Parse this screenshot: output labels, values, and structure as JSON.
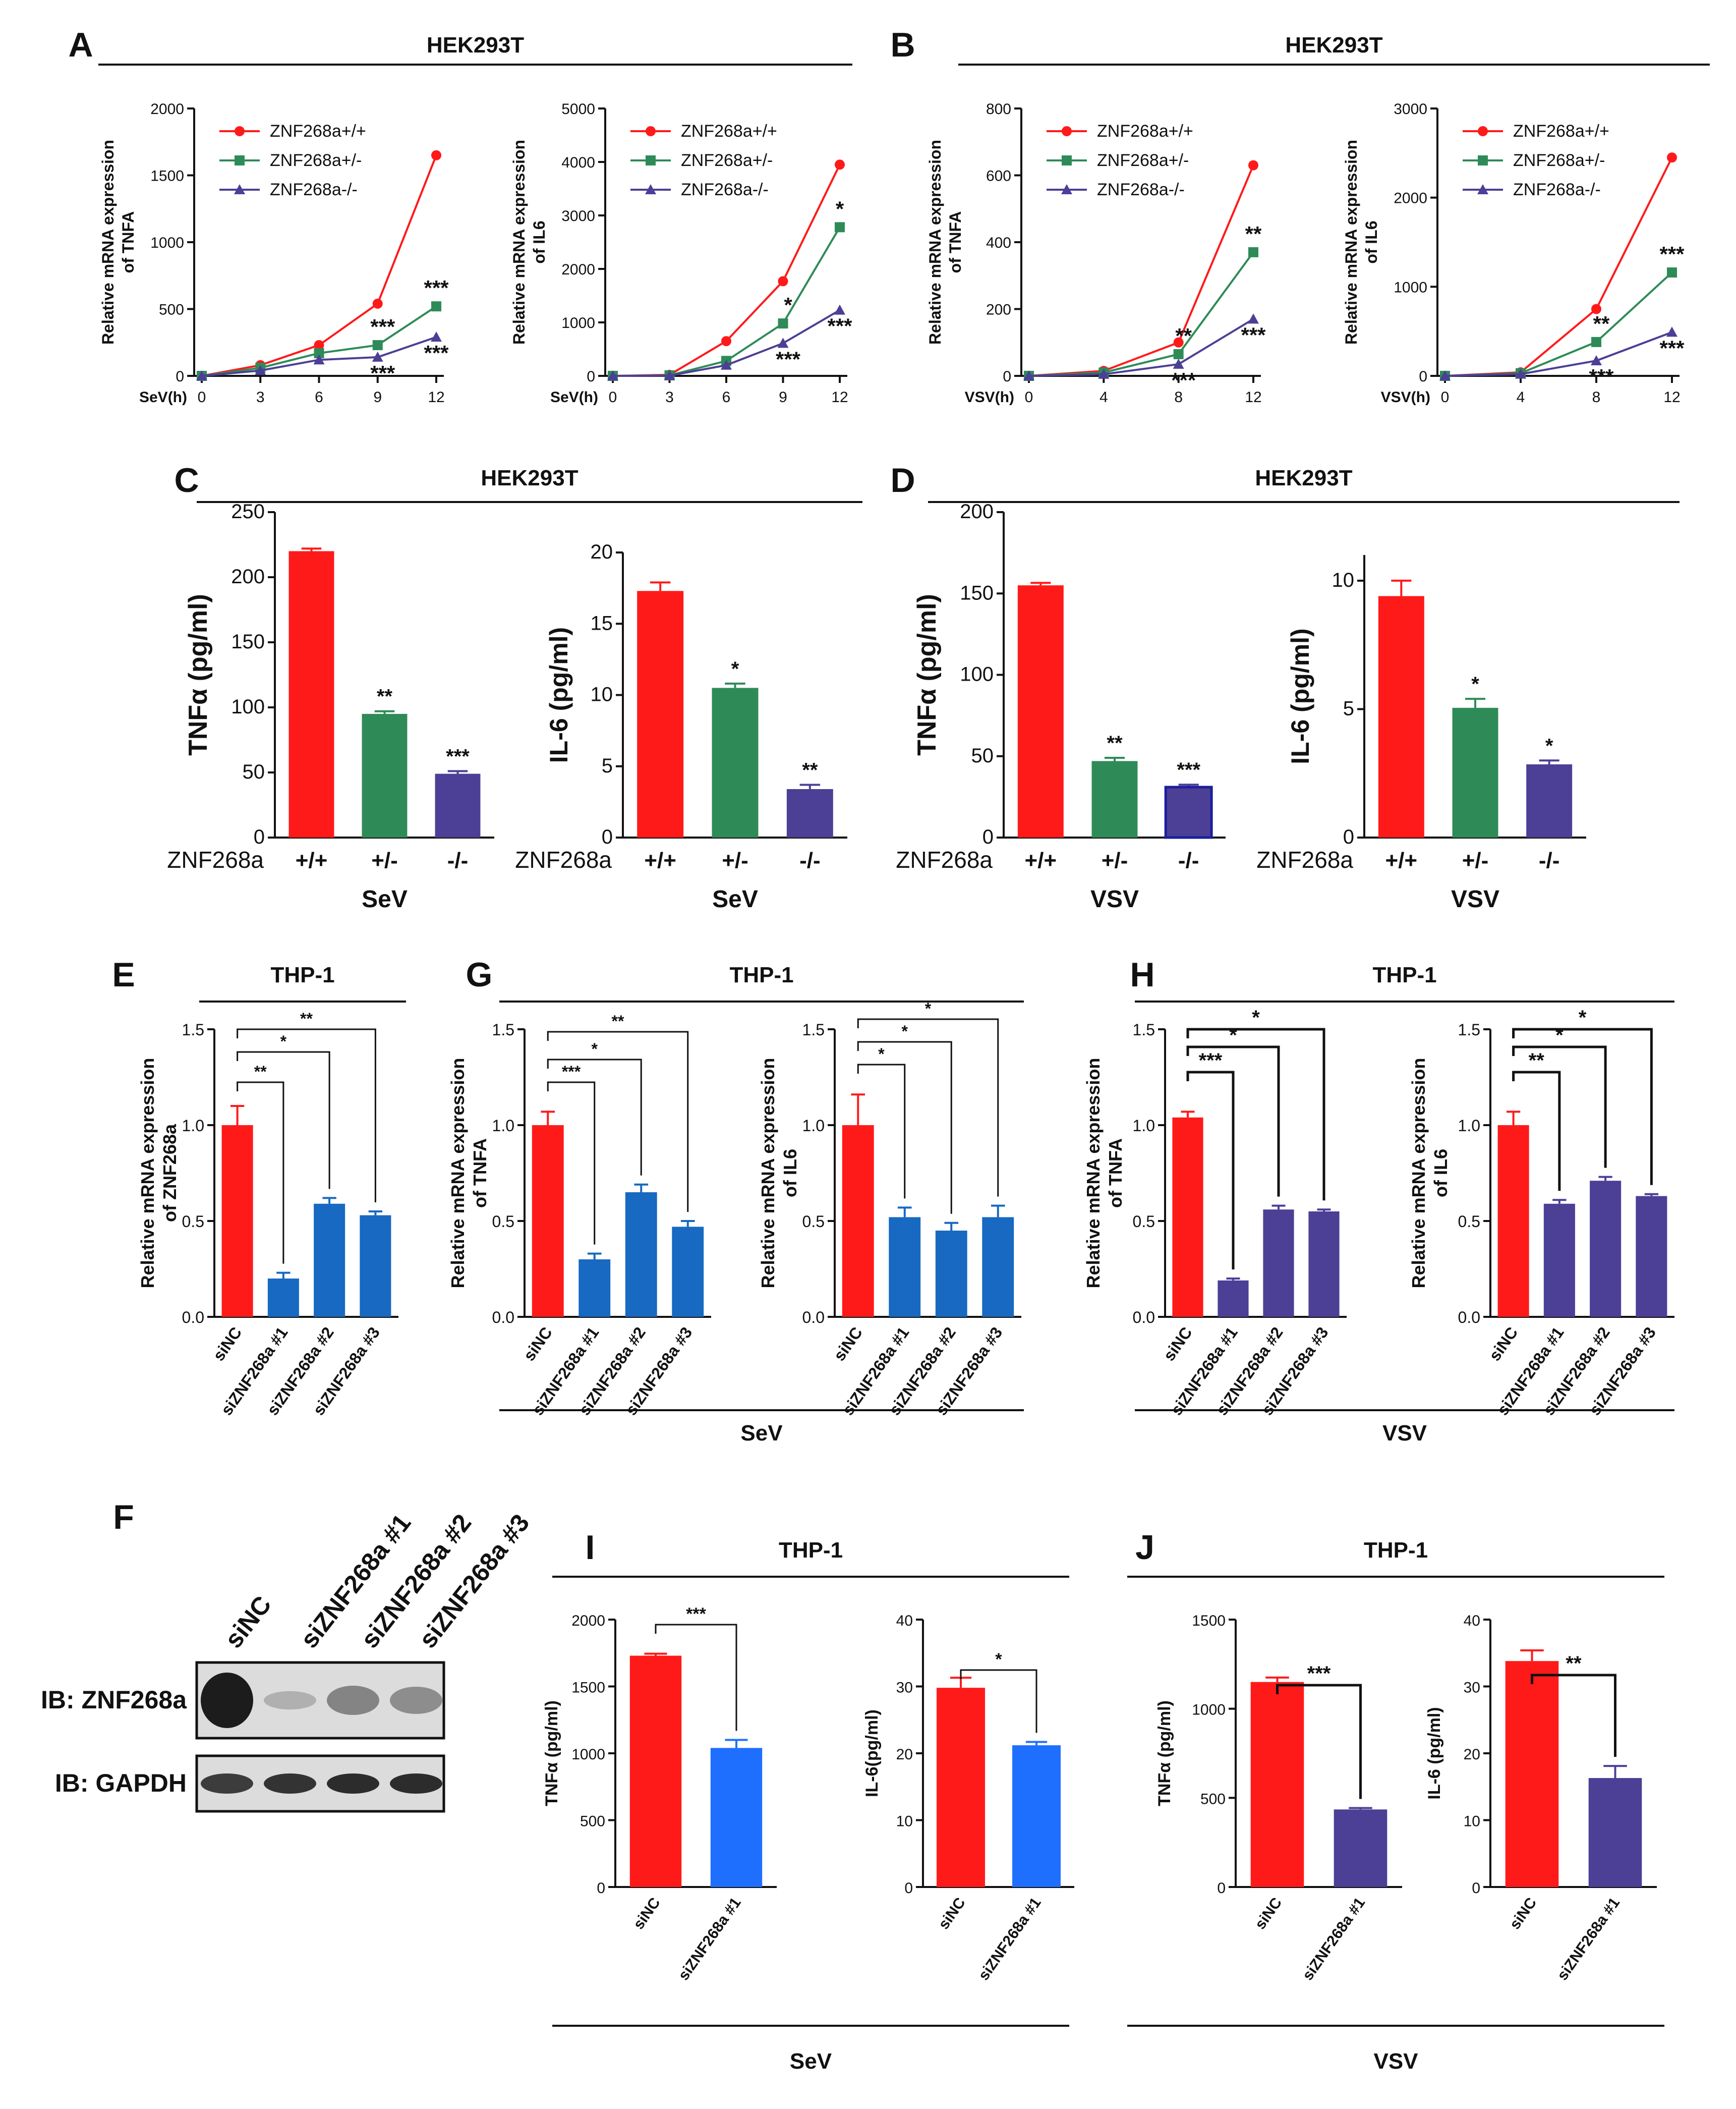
{
  "panel_letters": [
    "A",
    "B",
    "C",
    "D",
    "E",
    "F",
    "G",
    "H",
    "I",
    "J"
  ],
  "colors": {
    "red": "#ff1a1a",
    "green": "#2e8b57",
    "purple": "#4b3f96",
    "blue": "#1769c2",
    "bright_blue": "#1f6fff",
    "black": "#111111"
  },
  "section_titles": {
    "A": "HEK293T",
    "B": "HEK293T",
    "C": "HEK293T",
    "D": "HEK293T",
    "E": "THP-1",
    "G": "THP-1",
    "H": "THP-1",
    "I": "THP-1",
    "J": "THP-1"
  },
  "group_labels": {
    "G": "SeV",
    "H": "VSV",
    "I": "SeV",
    "J": "VSV"
  },
  "blot": {
    "lanes": [
      "siNC",
      "siZNF268a #1",
      "siZNF268a #2",
      "siZNF268a #3"
    ],
    "rows": [
      "IB: ZNF268a",
      "IB: GAPDH"
    ],
    "intensities": {
      "ZNF268a": [
        1.0,
        0.08,
        0.35,
        0.3
      ],
      "GAPDH": [
        0.8,
        0.85,
        0.9,
        0.9
      ]
    }
  },
  "chart_data": [
    {
      "id": "A1",
      "type": "line",
      "xlabel": "SeV(h)",
      "ylabel": [
        "Relative mRNA expression",
        "of TNFA"
      ],
      "x": [
        0,
        3,
        6,
        9,
        12
      ],
      "ylim": [
        0,
        2000
      ],
      "yticks": [
        0,
        500,
        1000,
        1500,
        2000
      ],
      "legend": [
        "ZNF268a+/+",
        "ZNF268a+/-",
        "ZNF268a-/-"
      ],
      "series": [
        {
          "name": "ZNF268a+/+",
          "values": [
            0,
            80,
            230,
            540,
            1650
          ]
        },
        {
          "name": "ZNF268a+/-",
          "values": [
            0,
            60,
            170,
            230,
            520
          ]
        },
        {
          "name": "ZNF268a-/-",
          "values": [
            0,
            40,
            120,
            140,
            290
          ]
        }
      ],
      "annotations": [
        {
          "x": 9,
          "y": 230,
          "text": "***"
        },
        {
          "x": 12,
          "y": 520,
          "text": "***"
        },
        {
          "x": 9,
          "y": 140,
          "text": "***"
        },
        {
          "x": 12,
          "y": 290,
          "text": "***"
        }
      ]
    },
    {
      "id": "A2",
      "type": "line",
      "xlabel": "SeV(h)",
      "ylabel": [
        "Relative mRNA expression",
        "of IL6"
      ],
      "x": [
        0,
        3,
        6,
        9,
        12
      ],
      "ylim": [
        0,
        5000
      ],
      "yticks": [
        0,
        1000,
        2000,
        3000,
        4000,
        5000
      ],
      "legend": [
        "ZNF268a+/+",
        "ZNF268a+/-",
        "ZNF268a-/-"
      ],
      "series": [
        {
          "name": "ZNF268a+/+",
          "values": [
            0,
            20,
            650,
            1770,
            3950
          ]
        },
        {
          "name": "ZNF268a+/-",
          "values": [
            0,
            10,
            280,
            980,
            2780
          ]
        },
        {
          "name": "ZNF268a-/-",
          "values": [
            0,
            5,
            200,
            610,
            1230
          ]
        }
      ],
      "annotations": [
        {
          "x": 9,
          "y": 980,
          "text": "*"
        },
        {
          "x": 12,
          "y": 2780,
          "text": "*"
        },
        {
          "x": 9,
          "y": 610,
          "text": "***"
        },
        {
          "x": 12,
          "y": 1230,
          "text": "***"
        }
      ]
    },
    {
      "id": "B1",
      "type": "line",
      "xlabel": "VSV(h)",
      "ylabel": [
        "Relative mRNA expression",
        "of TNFA"
      ],
      "x": [
        0,
        4,
        8,
        12
      ],
      "ylim": [
        0,
        800
      ],
      "yticks": [
        0,
        200,
        400,
        600,
        800
      ],
      "legend": [
        "ZNF268a+/+",
        "ZNF268a+/-",
        "ZNF268a-/-"
      ],
      "series": [
        {
          "name": "ZNF268a+/+",
          "values": [
            0,
            15,
            100,
            630
          ]
        },
        {
          "name": "ZNF268a+/-",
          "values": [
            0,
            10,
            65,
            370
          ]
        },
        {
          "name": "ZNF268a-/-",
          "values": [
            0,
            5,
            35,
            170
          ]
        }
      ],
      "annotations": [
        {
          "x": 8,
          "y": 65,
          "text": "**"
        },
        {
          "x": 12,
          "y": 370,
          "text": "**"
        },
        {
          "x": 8,
          "y": 35,
          "text": "***"
        },
        {
          "x": 12,
          "y": 170,
          "text": "***"
        }
      ]
    },
    {
      "id": "B2",
      "type": "line",
      "xlabel": "VSV(h)",
      "ylabel": [
        "Relative mRNA expression",
        "of IL6"
      ],
      "x": [
        0,
        4,
        8,
        12
      ],
      "ylim": [
        0,
        3000
      ],
      "yticks": [
        0,
        1000,
        2000,
        3000
      ],
      "legend": [
        "ZNF268a+/+",
        "ZNF268a+/-",
        "ZNF268a-/-"
      ],
      "series": [
        {
          "name": "ZNF268a+/+",
          "values": [
            0,
            40,
            750,
            2450
          ]
        },
        {
          "name": "ZNF268a+/-",
          "values": [
            0,
            30,
            380,
            1160
          ]
        },
        {
          "name": "ZNF268a-/-",
          "values": [
            0,
            20,
            170,
            490
          ]
        }
      ],
      "annotations": [
        {
          "x": 8,
          "y": 380,
          "text": "**"
        },
        {
          "x": 12,
          "y": 1160,
          "text": "***"
        },
        {
          "x": 8,
          "y": 170,
          "text": "***"
        },
        {
          "x": 12,
          "y": 490,
          "text": "***"
        }
      ]
    },
    {
      "id": "C1",
      "type": "bar",
      "ylabel": "TNFα (pg/ml)",
      "ylim": [
        0,
        250
      ],
      "yticks": [
        0,
        50,
        100,
        150,
        200,
        250
      ],
      "row_label": "ZNF268a",
      "categories": [
        "+/+",
        "+/-",
        "-/-"
      ],
      "values": [
        220,
        95,
        49
      ],
      "errors": [
        2,
        2,
        2
      ],
      "sig": [
        "",
        "**",
        "***"
      ],
      "xgroup": "SeV"
    },
    {
      "id": "C2",
      "type": "bar",
      "ylabel": "IL-6 (pg/ml)",
      "ylim": [
        0,
        20
      ],
      "yticks": [
        0,
        5,
        10,
        15,
        20
      ],
      "row_label": "ZNF268a",
      "categories": [
        "+/+",
        "+/-",
        "-/-"
      ],
      "values": [
        17.3,
        10.5,
        3.4
      ],
      "errors": [
        0.6,
        0.3,
        0.3
      ],
      "sig": [
        "",
        "*",
        "**"
      ],
      "xgroup": "SeV"
    },
    {
      "id": "D1",
      "type": "bar",
      "ylabel": "TNFα (pg/ml)",
      "ylim": [
        0,
        200
      ],
      "yticks": [
        0,
        50,
        100,
        150,
        200
      ],
      "row_label": "ZNF268a",
      "categories": [
        "+/+",
        "+/-",
        "-/-"
      ],
      "values": [
        155,
        47,
        31
      ],
      "errors": [
        1.5,
        2,
        1.5
      ],
      "sig": [
        "",
        "**",
        "***"
      ],
      "xgroup": "VSV"
    },
    {
      "id": "D2",
      "type": "bar",
      "ylabel": "IL-6 (pg/ml)",
      "ylim": [
        0,
        11
      ],
      "yticks": [
        0,
        5,
        10
      ],
      "row_label": "ZNF268a",
      "categories": [
        "+/+",
        "+/-",
        "-/-"
      ],
      "values": [
        9.4,
        5.05,
        2.85
      ],
      "errors": [
        0.6,
        0.35,
        0.15
      ],
      "sig": [
        "",
        "*",
        "*"
      ],
      "xgroup": "VSV"
    },
    {
      "id": "E",
      "type": "bar",
      "ylabel": [
        "Relative mRNA expression",
        "of ZNF268a"
      ],
      "ylim": [
        0,
        1.5
      ],
      "yticks": [
        0.0,
        0.5,
        1.0,
        1.5
      ],
      "categories": [
        "siNC",
        "siZNF268a #1",
        "siZNF268a #2",
        "siZNF268a #3"
      ],
      "values": [
        1.0,
        0.2,
        0.59,
        0.53
      ],
      "errors": [
        0.1,
        0.03,
        0.03,
        0.02
      ],
      "brackets": [
        {
          "to": 1,
          "text": "**"
        },
        {
          "to": 2,
          "text": "*"
        },
        {
          "to": 3,
          "text": "**"
        }
      ]
    },
    {
      "id": "G1",
      "type": "bar",
      "ylabel": [
        "Relative mRNA expression",
        "of TNFA"
      ],
      "ylim": [
        0,
        1.5
      ],
      "yticks": [
        0.0,
        0.5,
        1.0,
        1.5
      ],
      "categories": [
        "siNC",
        "siZNF268a #1",
        "siZNF268a #2",
        "siZNF268a #3"
      ],
      "values": [
        1.0,
        0.3,
        0.65,
        0.47
      ],
      "errors": [
        0.07,
        0.03,
        0.04,
        0.03
      ],
      "brackets": [
        {
          "to": 1,
          "text": "***"
        },
        {
          "to": 2,
          "text": "*"
        },
        {
          "to": 3,
          "text": "**"
        }
      ]
    },
    {
      "id": "G2",
      "type": "bar",
      "ylabel": [
        "Relative mRNA expression",
        "of IL6"
      ],
      "ylim": [
        0,
        1.5
      ],
      "yticks": [
        0.0,
        0.5,
        1.0,
        1.5
      ],
      "categories": [
        "siNC",
        "siZNF268a #1",
        "siZNF268a #2",
        "siZNF268a #3"
      ],
      "values": [
        1.0,
        0.52,
        0.45,
        0.52
      ],
      "errors": [
        0.16,
        0.05,
        0.04,
        0.06
      ],
      "brackets": [
        {
          "to": 1,
          "text": "*"
        },
        {
          "to": 2,
          "text": "*"
        },
        {
          "to": 3,
          "text": "*"
        }
      ]
    },
    {
      "id": "H1",
      "type": "bar",
      "ylabel": [
        "Relative mRNA expression",
        "of TNFA"
      ],
      "ylim": [
        0,
        1.5
      ],
      "yticks": [
        0.0,
        0.5,
        1.0,
        1.5
      ],
      "categories": [
        "siNC",
        "siZNF268a #1",
        "siZNF268a #2",
        "siZNF268a #3"
      ],
      "values": [
        1.04,
        0.19,
        0.56,
        0.55
      ],
      "errors": [
        0.03,
        0.01,
        0.02,
        0.01
      ],
      "brackets": [
        {
          "to": 1,
          "text": "***"
        },
        {
          "to": 2,
          "text": "*"
        },
        {
          "to": 3,
          "text": "*"
        }
      ]
    },
    {
      "id": "H2",
      "type": "bar",
      "ylabel": [
        "Relative mRNA expression",
        "of IL6"
      ],
      "ylim": [
        0,
        1.5
      ],
      "yticks": [
        0.0,
        0.5,
        1.0,
        1.5
      ],
      "categories": [
        "siNC",
        "siZNF268a #1",
        "siZNF268a #2",
        "siZNF268a #3"
      ],
      "values": [
        1.0,
        0.59,
        0.71,
        0.63
      ],
      "errors": [
        0.07,
        0.02,
        0.02,
        0.01
      ],
      "brackets": [
        {
          "to": 1,
          "text": "**"
        },
        {
          "to": 2,
          "text": "*"
        },
        {
          "to": 3,
          "text": "*"
        }
      ]
    },
    {
      "id": "I1",
      "type": "bar",
      "ylabel": "TNFα (pg/ml)",
      "ylim": [
        0,
        2000
      ],
      "yticks": [
        0,
        500,
        1000,
        1500,
        2000
      ],
      "categories": [
        "siNC",
        "siZNF268a #1"
      ],
      "values": [
        1730,
        1040
      ],
      "errors": [
        15,
        60
      ],
      "brackets": [
        {
          "to": 1,
          "text": "***"
        }
      ]
    },
    {
      "id": "I2",
      "type": "bar",
      "ylabel": "IL-6(pg/ml)",
      "ylim": [
        0,
        40
      ],
      "yticks": [
        0,
        10,
        20,
        30,
        40
      ],
      "categories": [
        "siNC",
        "siZNF268a #1"
      ],
      "values": [
        29.8,
        21.2
      ],
      "errors": [
        1.5,
        0.5
      ],
      "brackets": [
        {
          "to": 1,
          "text": "*"
        }
      ]
    },
    {
      "id": "J1",
      "type": "bar",
      "ylabel": "TNFα (pg/ml)",
      "ylim": [
        0,
        1500
      ],
      "yticks": [
        0,
        500,
        1000,
        1500
      ],
      "categories": [
        "siNC",
        "siZNF268a #1"
      ],
      "values": [
        1150,
        435
      ],
      "errors": [
        25,
        8
      ],
      "brackets": [
        {
          "to": 1,
          "text": "***"
        }
      ]
    },
    {
      "id": "J2",
      "type": "bar",
      "ylabel": "IL-6 (pg/ml)",
      "ylim": [
        0,
        40
      ],
      "yticks": [
        0,
        10,
        20,
        30,
        40
      ],
      "categories": [
        "siNC",
        "siZNF268a #1"
      ],
      "values": [
        33.8,
        16.3
      ],
      "errors": [
        1.6,
        1.8
      ],
      "brackets": [
        {
          "to": 1,
          "text": "**"
        }
      ]
    }
  ]
}
